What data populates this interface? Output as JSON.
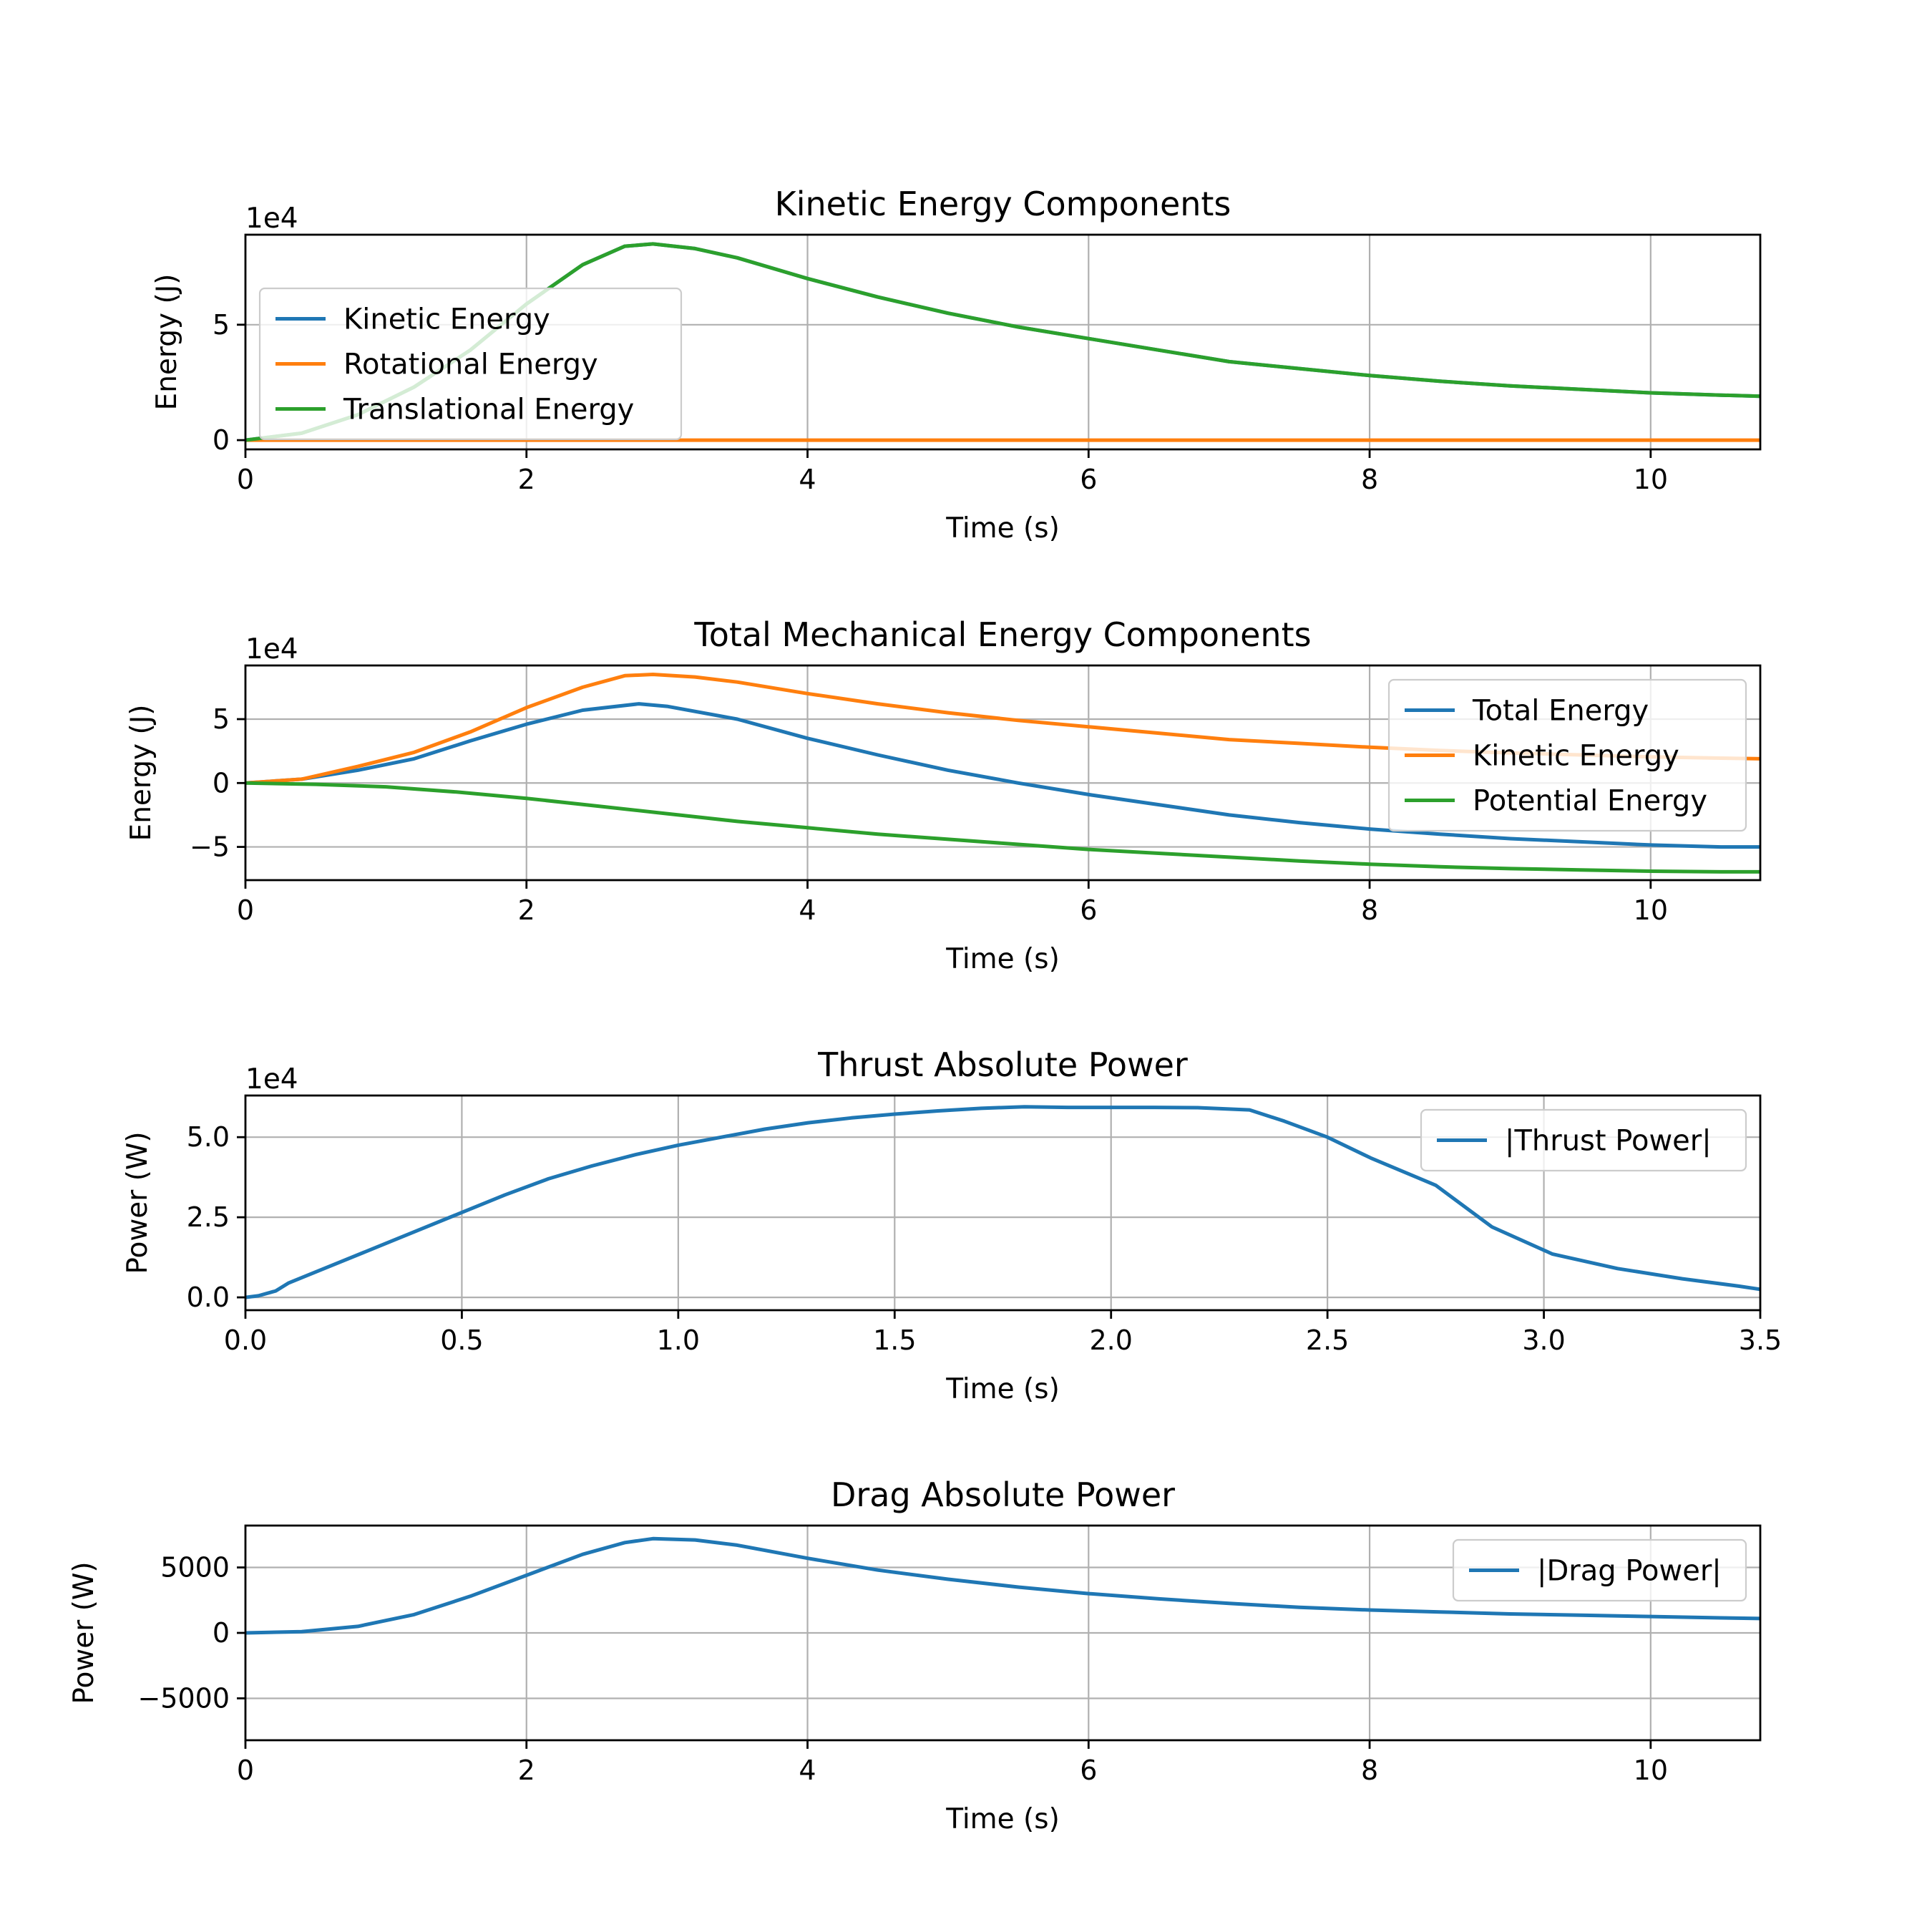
{
  "colors": {
    "blue": "#1f77b4",
    "orange": "#ff7f0e",
    "green": "#2ca02c",
    "grid": "#b0b0b0"
  },
  "chart_data": [
    {
      "type": "line",
      "title": "Kinetic Energy Components",
      "xlabel": "Time (s)",
      "ylabel": "Energy (J)",
      "y_offset_label": "1e4",
      "xlim": [
        0,
        10.78
      ],
      "ylim": [
        -0.4,
        8.9
      ],
      "x_ticks": [
        0,
        2,
        4,
        6,
        8,
        10
      ],
      "x_tick_labels": [
        "0",
        "2",
        "4",
        "6",
        "8",
        "10"
      ],
      "y_ticks": [
        0,
        5
      ],
      "y_tick_labels": [
        "0",
        "5"
      ],
      "grid": true,
      "legend_position": "center-left",
      "series": [
        {
          "name": "Kinetic Energy",
          "color": "#1f77b4",
          "x": [
            0,
            0.4,
            0.8,
            1.2,
            1.6,
            2.0,
            2.4,
            2.7,
            2.9,
            3.2,
            3.5,
            4.0,
            4.5,
            5.0,
            5.5,
            6.0,
            6.5,
            7.0,
            7.5,
            8.0,
            8.5,
            9.0,
            9.5,
            10.0,
            10.5,
            10.78
          ],
          "y": [
            0,
            0.3,
            1.1,
            2.3,
            3.9,
            5.9,
            7.6,
            8.4,
            8.5,
            8.3,
            7.9,
            7.0,
            6.2,
            5.5,
            4.9,
            4.4,
            3.9,
            3.4,
            3.1,
            2.8,
            2.55,
            2.35,
            2.2,
            2.05,
            1.95,
            1.9
          ]
        },
        {
          "name": "Rotational Energy",
          "color": "#ff7f0e",
          "x": [
            0,
            10.78
          ],
          "y": [
            0,
            0
          ]
        },
        {
          "name": "Translational Energy",
          "color": "#2ca02c",
          "x": [
            0,
            0.4,
            0.8,
            1.2,
            1.6,
            2.0,
            2.4,
            2.7,
            2.9,
            3.2,
            3.5,
            4.0,
            4.5,
            5.0,
            5.5,
            6.0,
            6.5,
            7.0,
            7.5,
            8.0,
            8.5,
            9.0,
            9.5,
            10.0,
            10.5,
            10.78
          ],
          "y": [
            0,
            0.3,
            1.1,
            2.3,
            3.9,
            5.9,
            7.6,
            8.4,
            8.5,
            8.3,
            7.9,
            7.0,
            6.2,
            5.5,
            4.9,
            4.4,
            3.9,
            3.4,
            3.1,
            2.8,
            2.55,
            2.35,
            2.2,
            2.05,
            1.95,
            1.9
          ]
        }
      ]
    },
    {
      "type": "line",
      "title": "Total Mechanical Energy Components",
      "xlabel": "Time (s)",
      "ylabel": "Energy (J)",
      "y_offset_label": "1e4",
      "xlim": [
        0,
        10.78
      ],
      "ylim": [
        -7.6,
        9.2
      ],
      "x_ticks": [
        0,
        2,
        4,
        6,
        8,
        10
      ],
      "x_tick_labels": [
        "0",
        "2",
        "4",
        "6",
        "8",
        "10"
      ],
      "y_ticks": [
        -5,
        0,
        5
      ],
      "y_tick_labels": [
        "−5",
        "0",
        "5"
      ],
      "grid": true,
      "legend_position": "upper-right",
      "series": [
        {
          "name": "Total Energy",
          "color": "#1f77b4",
          "x": [
            0,
            0.4,
            0.8,
            1.2,
            1.6,
            2.0,
            2.4,
            2.8,
            3.0,
            3.5,
            4.0,
            4.5,
            5.0,
            5.5,
            6.0,
            6.5,
            7.0,
            7.5,
            8.0,
            8.5,
            9.0,
            9.5,
            10.0,
            10.5,
            10.78
          ],
          "y": [
            0,
            0.3,
            1.0,
            1.9,
            3.3,
            4.6,
            5.7,
            6.2,
            6.0,
            5.0,
            3.5,
            2.2,
            1.0,
            0,
            -0.9,
            -1.7,
            -2.5,
            -3.1,
            -3.6,
            -4.0,
            -4.35,
            -4.6,
            -4.85,
            -5.0,
            -5.0
          ]
        },
        {
          "name": "Kinetic Energy",
          "color": "#ff7f0e",
          "x": [
            0,
            0.4,
            0.8,
            1.2,
            1.6,
            2.0,
            2.4,
            2.7,
            2.9,
            3.2,
            3.5,
            4.0,
            4.5,
            5.0,
            5.5,
            6.0,
            6.5,
            7.0,
            7.5,
            8.0,
            8.5,
            9.0,
            9.5,
            10.0,
            10.5,
            10.78
          ],
          "y": [
            0,
            0.3,
            1.3,
            2.4,
            4.0,
            5.9,
            7.5,
            8.4,
            8.5,
            8.3,
            7.9,
            7.0,
            6.2,
            5.5,
            4.9,
            4.4,
            3.9,
            3.4,
            3.1,
            2.8,
            2.55,
            2.35,
            2.2,
            2.05,
            1.95,
            1.9
          ]
        },
        {
          "name": "Potential Energy",
          "color": "#2ca02c",
          "x": [
            0,
            0.5,
            1.0,
            1.5,
            2.0,
            2.5,
            3.0,
            3.5,
            4.0,
            4.5,
            5.0,
            5.5,
            6.0,
            6.5,
            7.0,
            7.5,
            8.0,
            8.5,
            9.0,
            9.5,
            10.0,
            10.5,
            10.78
          ],
          "y": [
            0,
            -0.1,
            -0.3,
            -0.7,
            -1.2,
            -1.8,
            -2.4,
            -3.0,
            -3.5,
            -4.0,
            -4.4,
            -4.8,
            -5.2,
            -5.5,
            -5.8,
            -6.1,
            -6.35,
            -6.55,
            -6.7,
            -6.8,
            -6.9,
            -6.95,
            -6.95
          ]
        }
      ]
    },
    {
      "type": "line",
      "title": "Thrust Absolute Power",
      "xlabel": "Time (s)",
      "ylabel": "Power (W)",
      "y_offset_label": "1e4",
      "xlim": [
        0,
        3.5
      ],
      "ylim": [
        -0.4,
        6.3
      ],
      "x_ticks": [
        0,
        0.5,
        1.0,
        1.5,
        2.0,
        2.5,
        3.0,
        3.5
      ],
      "x_tick_labels": [
        "0.0",
        "0.5",
        "1.0",
        "1.5",
        "2.0",
        "2.5",
        "3.0",
        "3.5"
      ],
      "y_ticks": [
        0,
        2.5,
        5.0
      ],
      "y_tick_labels": [
        "0.0",
        "2.5",
        "5.0"
      ],
      "grid": true,
      "legend_position": "upper-right",
      "series": [
        {
          "name": "|Thrust Power|",
          "color": "#1f77b4",
          "x": [
            0,
            0.03,
            0.07,
            0.1,
            0.2,
            0.3,
            0.4,
            0.5,
            0.6,
            0.7,
            0.8,
            0.9,
            1.0,
            1.1,
            1.2,
            1.3,
            1.4,
            1.5,
            1.6,
            1.7,
            1.8,
            1.9,
            2.0,
            2.1,
            2.2,
            2.32,
            2.4,
            2.5,
            2.6,
            2.75,
            2.88,
            3.02,
            3.17,
            3.32,
            3.45,
            3.5
          ],
          "y": [
            0,
            0.05,
            0.2,
            0.45,
            1.0,
            1.55,
            2.1,
            2.65,
            3.2,
            3.7,
            4.1,
            4.45,
            4.75,
            5.0,
            5.25,
            5.45,
            5.6,
            5.72,
            5.82,
            5.9,
            5.95,
            5.93,
            5.93,
            5.93,
            5.92,
            5.85,
            5.5,
            5.0,
            4.35,
            3.5,
            2.2,
            1.35,
            0.9,
            0.58,
            0.35,
            0.25
          ]
        }
      ]
    },
    {
      "type": "line",
      "title": "Drag Absolute Power",
      "xlabel": "Time (s)",
      "ylabel": "Power (W)",
      "y_offset_label": "",
      "xlim": [
        0,
        10.78
      ],
      "ylim": [
        -8200,
        8200
      ],
      "x_ticks": [
        0,
        2,
        4,
        6,
        8,
        10
      ],
      "x_tick_labels": [
        "0",
        "2",
        "4",
        "6",
        "8",
        "10"
      ],
      "y_ticks": [
        -5000,
        0,
        5000
      ],
      "y_tick_labels": [
        "−5000",
        "0",
        "5000"
      ],
      "grid": true,
      "legend_position": "upper-right",
      "series": [
        {
          "name": "|Drag Power|",
          "color": "#1f77b4",
          "x": [
            0,
            0.4,
            0.8,
            1.2,
            1.6,
            2.0,
            2.4,
            2.7,
            2.9,
            3.2,
            3.5,
            4.0,
            4.5,
            5.0,
            5.5,
            6.0,
            6.5,
            7.0,
            7.5,
            8.0,
            8.5,
            9.0,
            9.5,
            10.0,
            10.5,
            10.78
          ],
          "y": [
            0,
            100,
            500,
            1400,
            2800,
            4400,
            6000,
            6900,
            7200,
            7100,
            6700,
            5700,
            4800,
            4100,
            3500,
            3000,
            2600,
            2250,
            1950,
            1750,
            1600,
            1450,
            1350,
            1250,
            1150,
            1100
          ]
        }
      ]
    }
  ]
}
